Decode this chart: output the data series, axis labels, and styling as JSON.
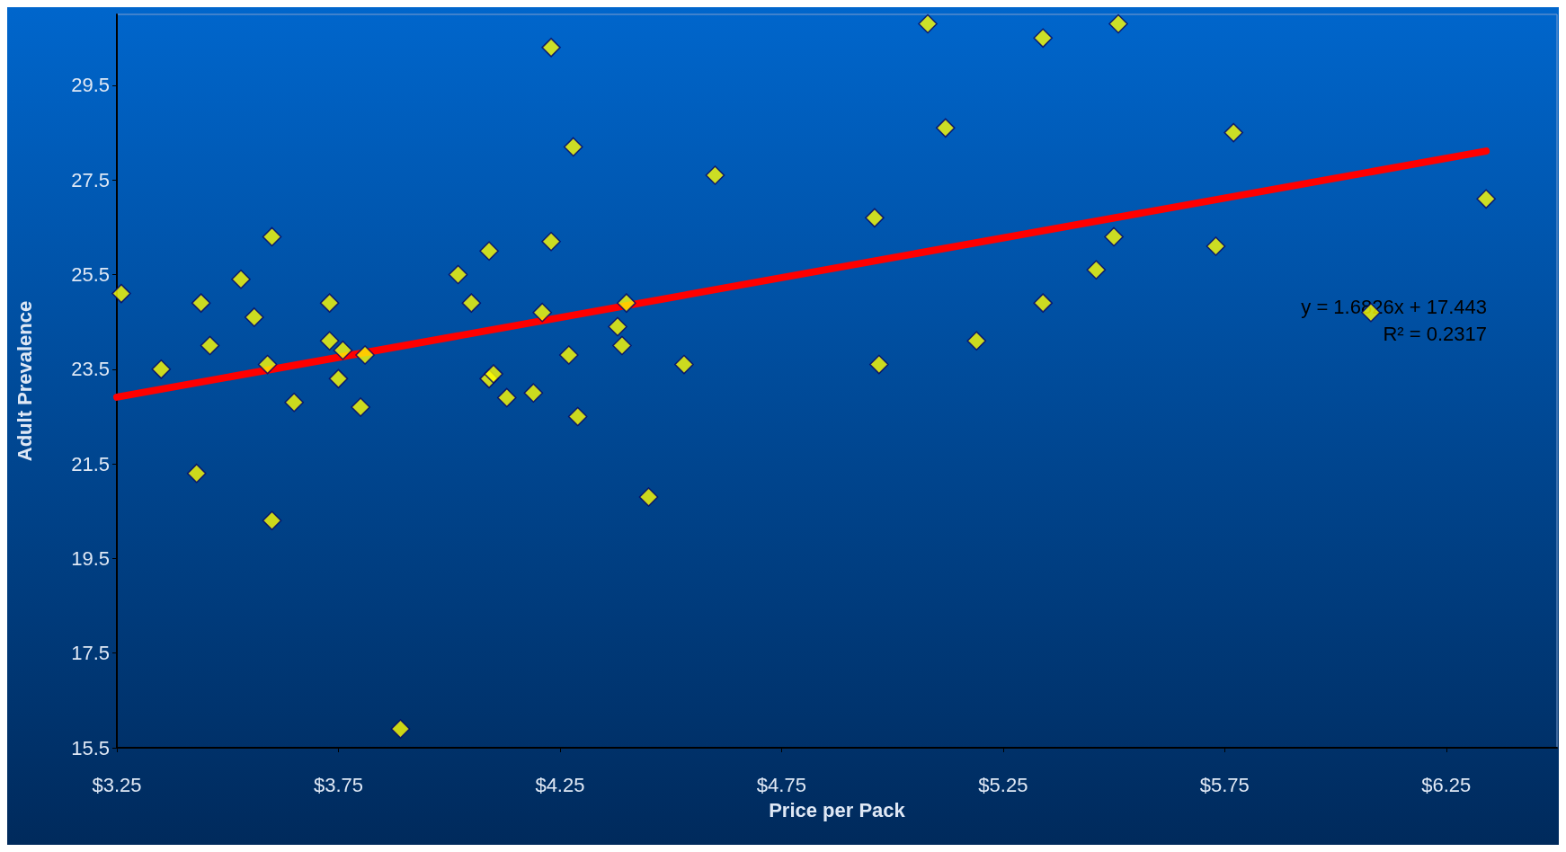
{
  "chart_data": {
    "type": "scatter",
    "xlabel": "Price per Pack",
    "ylabel": "Adult Prevalence",
    "xlim": [
      3.25,
      6.5
    ],
    "ylim": [
      15.5,
      31
    ],
    "xticks": [
      {
        "value": 3.25,
        "label": "$3.25"
      },
      {
        "value": 3.75,
        "label": "$3.75"
      },
      {
        "value": 4.25,
        "label": "$4.25"
      },
      {
        "value": 4.75,
        "label": "$4.75"
      },
      {
        "value": 5.25,
        "label": "$5.25"
      },
      {
        "value": 5.75,
        "label": "$5.75"
      },
      {
        "value": 6.25,
        "label": "$6.25"
      }
    ],
    "yticks": [
      15.5,
      17.5,
      19.5,
      21.5,
      23.5,
      25.5,
      27.5,
      29.5
    ],
    "grid": false,
    "marker": "diamond",
    "annotations": [
      "y = 1.6826x + 17.443",
      "R² = 0.2317"
    ],
    "series": [
      {
        "color": "#ffff00",
        "x": [
          3.26,
          3.35,
          3.43,
          3.44,
          3.46,
          3.53,
          3.56,
          3.6,
          3.59,
          3.6,
          3.65,
          3.73,
          3.73,
          3.75,
          3.76,
          3.8,
          3.81,
          3.89,
          4.02,
          4.05,
          4.09,
          4.09,
          4.1,
          4.13,
          4.19,
          4.21,
          4.23,
          4.23,
          4.27,
          4.28,
          4.29,
          4.38,
          4.39,
          4.4,
          4.45,
          4.53,
          4.6,
          4.96,
          4.97,
          5.08,
          5.12,
          5.19,
          5.34,
          5.34,
          5.46,
          5.5,
          5.51,
          5.73,
          5.77,
          6.08,
          6.34
        ],
        "values": [
          25.1,
          23.5,
          21.3,
          24.9,
          24.0,
          25.4,
          24.6,
          26.3,
          23.6,
          20.3,
          22.8,
          24.9,
          24.1,
          23.3,
          23.9,
          22.7,
          23.8,
          15.9,
          25.5,
          24.9,
          26.0,
          23.3,
          23.4,
          22.9,
          23.0,
          24.7,
          30.3,
          26.2,
          23.8,
          28.2,
          22.5,
          24.4,
          24.0,
          24.9,
          20.8,
          23.6,
          27.6,
          26.7,
          23.6,
          30.8,
          28.6,
          24.1,
          24.9,
          30.5,
          25.6,
          26.3,
          30.8,
          26.1,
          28.5,
          24.7,
          27.1
        ]
      },
      {
        "type": "line",
        "color": "#ff0000",
        "x": [
          3.25,
          6.34
        ],
        "values": [
          22.91,
          28.11
        ],
        "marker": "none"
      }
    ]
  }
}
